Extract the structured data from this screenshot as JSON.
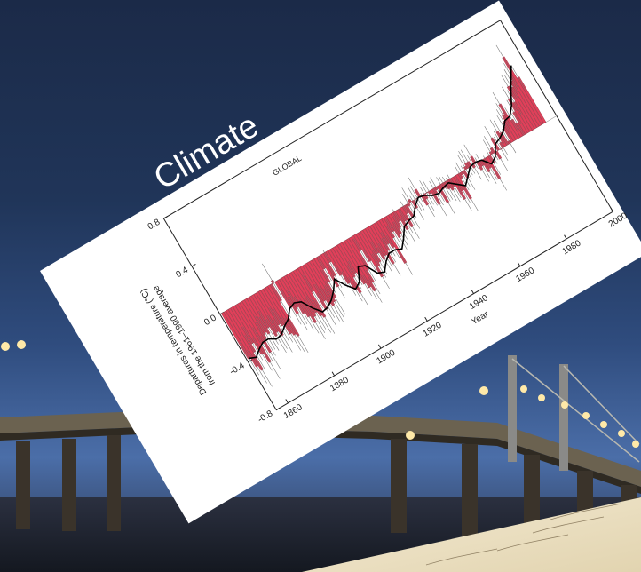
{
  "caption": "Climate",
  "chart_data": {
    "type": "bar",
    "title": "GLOBAL",
    "xlabel": "Year",
    "ylabel_line1": "Departures in temperature (°C)",
    "ylabel_line2": "from the 1961–1990 average",
    "xlim": [
      1855,
      2000
    ],
    "ylim": [
      -0.8,
      0.8
    ],
    "xticks": [
      "1860",
      "1880",
      "1900",
      "1920",
      "1940",
      "1960",
      "1980",
      "2000"
    ],
    "yticks": [
      "-0.8",
      "-0.4",
      "0.0",
      "0.4",
      "0.8"
    ],
    "bar_color_positive": "#e0405a",
    "bar_color_negative": "#e0405a",
    "smooth_color": "#000000",
    "years_start": 1856,
    "anomalies": [
      -0.38,
      -0.46,
      -0.5,
      -0.36,
      -0.3,
      -0.4,
      -0.48,
      -0.34,
      -0.42,
      -0.32,
      -0.28,
      -0.3,
      -0.26,
      -0.34,
      -0.32,
      -0.36,
      -0.28,
      -0.3,
      -0.38,
      -0.4,
      -0.42,
      -0.14,
      0.02,
      -0.22,
      -0.28,
      -0.24,
      -0.3,
      -0.34,
      -0.4,
      -0.36,
      -0.34,
      -0.38,
      -0.4,
      -0.2,
      -0.36,
      -0.3,
      -0.34,
      -0.36,
      -0.34,
      -0.32,
      -0.2,
      -0.1,
      -0.26,
      -0.18,
      -0.08,
      -0.2,
      -0.28,
      -0.34,
      -0.38,
      -0.26,
      -0.24,
      -0.34,
      -0.38,
      -0.42,
      -0.36,
      -0.26,
      -0.12,
      -0.22,
      -0.36,
      -0.28,
      -0.26,
      -0.2,
      -0.26,
      -0.24,
      -0.32,
      -0.22,
      -0.18,
      -0.22,
      -0.36,
      -0.16,
      -0.12,
      -0.18,
      -0.16,
      -0.12,
      -0.08,
      -0.16,
      -0.1,
      -0.16,
      -0.06,
      -0.1,
      -0.02,
      0.02,
      -0.06,
      0.0,
      0.0,
      0.06,
      -0.08,
      -0.04,
      0.0,
      -0.02,
      -0.12,
      -0.04,
      -0.02,
      -0.14,
      -0.04,
      -0.04,
      -0.06,
      -0.08,
      -0.06,
      -0.18,
      -0.12,
      -0.2,
      -0.04,
      -0.02,
      -0.06,
      0.02,
      0.04,
      0.04,
      -0.02,
      0.06,
      -0.06,
      -0.04,
      -0.1,
      -0.08,
      -0.18,
      -0.06,
      0.02,
      0.04,
      -0.06,
      0.1,
      0.0,
      0.04,
      0.12,
      0.1,
      0.02,
      0.12,
      0.16,
      0.2,
      0.28,
      0.14,
      0.1,
      0.18,
      0.28,
      0.24,
      0.36,
      0.34,
      0.38,
      0.42,
      0.56,
      0.38
    ],
    "smoothed": [
      -0.38,
      -0.4,
      -0.36,
      -0.33,
      -0.33,
      -0.36,
      -0.35,
      -0.31,
      -0.28,
      -0.22,
      -0.2,
      -0.22,
      -0.3,
      -0.36,
      -0.35,
      -0.32,
      -0.27,
      -0.2,
      -0.28,
      -0.34,
      -0.31,
      -0.21,
      -0.23,
      -0.32,
      -0.34,
      -0.28,
      -0.24,
      -0.24,
      -0.26,
      -0.2,
      -0.13,
      -0.11,
      -0.1,
      -0.04,
      0.0,
      -0.01,
      -0.04,
      -0.05,
      -0.03,
      -0.02,
      -0.06,
      -0.1,
      -0.05,
      0.0,
      0.01,
      0.0,
      -0.06,
      -0.03,
      0.05,
      0.07,
      0.1,
      0.16,
      0.17,
      0.23,
      0.32,
      0.4,
      0.48
    ]
  }
}
